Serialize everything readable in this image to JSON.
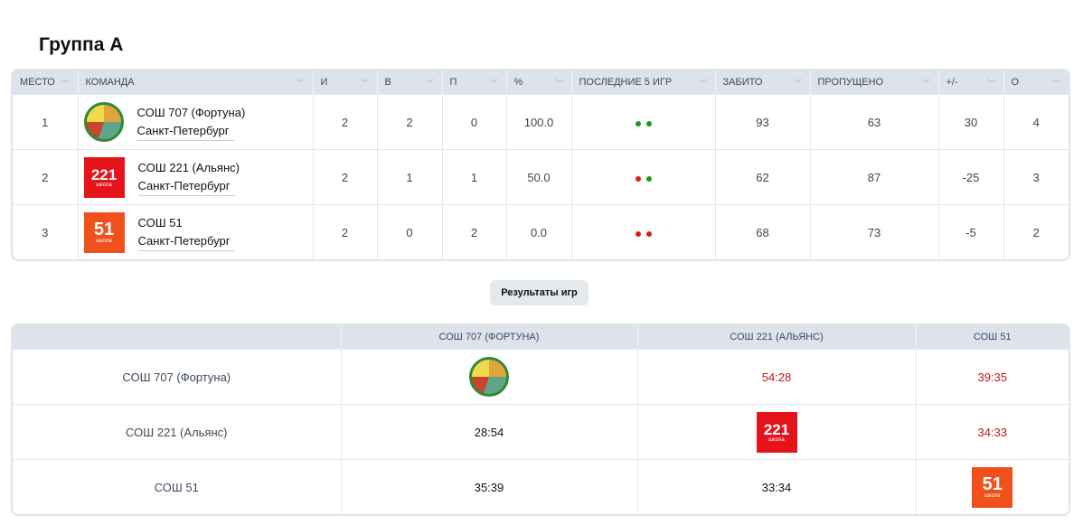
{
  "title": "Группа A",
  "standings": {
    "columns": [
      "МЕСТО",
      "КОМАНДА",
      "И",
      "В",
      "П",
      "%",
      "ПОСЛЕДНИЕ 5 ИГР",
      "ЗАБИТО",
      "ПРОПУЩЕНО",
      "+/-",
      "О"
    ],
    "rows": [
      {
        "place": "1",
        "team": "СОШ 707 (Фортуна)",
        "city": "Санкт-Петербург",
        "logo": "707",
        "games": "2",
        "wins": "2",
        "losses": "0",
        "pct": "100.0",
        "last5": [
          "win",
          "win"
        ],
        "scored": "93",
        "conceded": "63",
        "diff": "30",
        "points": "4"
      },
      {
        "place": "2",
        "team": "СОШ 221 (Альянс)",
        "city": "Санкт-Петербург",
        "logo": "221",
        "games": "2",
        "wins": "1",
        "losses": "1",
        "pct": "50.0",
        "last5": [
          "loss",
          "win"
        ],
        "scored": "62",
        "conceded": "87",
        "diff": "-25",
        "points": "3"
      },
      {
        "place": "3",
        "team": "СОШ 51",
        "city": "Санкт-Петербург",
        "logo": "51",
        "games": "2",
        "wins": "0",
        "losses": "2",
        "pct": "0.0",
        "last5": [
          "loss",
          "loss"
        ],
        "scored": "68",
        "conceded": "73",
        "diff": "-5",
        "points": "2"
      }
    ]
  },
  "logo_caption": "школа",
  "results_button": "Результаты игр",
  "results": {
    "columns": [
      "",
      "СОШ 707 (ФОРТУНА)",
      "СОШ 221 (АЛЬЯНС)",
      "СОШ 51"
    ],
    "rows": [
      {
        "team": "СОШ 707 (Фортуна)",
        "cells": [
          {
            "logo": "707"
          },
          {
            "score": "54:28",
            "color": "#c0141b"
          },
          {
            "score": "39:35",
            "color": "#c0141b"
          }
        ]
      },
      {
        "team": "СОШ 221 (Альянс)",
        "cells": [
          {
            "score": "28:54",
            "color": "#111111"
          },
          {
            "logo": "221"
          },
          {
            "score": "34:33",
            "color": "#c0141b"
          }
        ]
      },
      {
        "team": "СОШ 51",
        "cells": [
          {
            "score": "35:39",
            "color": "#111111"
          },
          {
            "score": "33:34",
            "color": "#111111"
          },
          {
            "logo": "51"
          }
        ]
      }
    ]
  },
  "colors": {
    "win": "#1a9a1a",
    "loss": "#d2211e",
    "header_bg": "#dde3ea"
  }
}
